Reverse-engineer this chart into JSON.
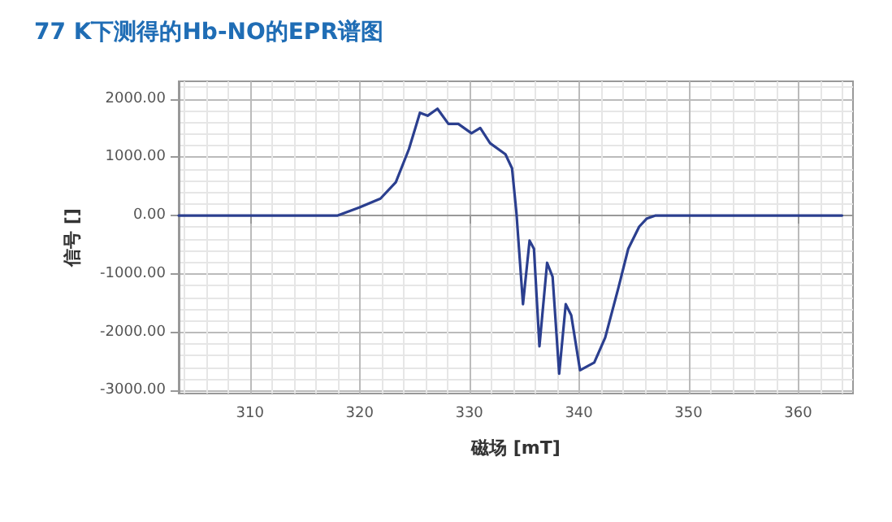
{
  "chart_data": {
    "type": "line",
    "title": "77 K下测得的Hb-NO的EPR谱图",
    "xlabel": "磁场 [mT]",
    "ylabel": "信号 []",
    "x": [
      303.5,
      318,
      320,
      321.9,
      323.3,
      324.5,
      325.5,
      326.2,
      327.1,
      328.1,
      329,
      330.2,
      331,
      331.9,
      333.3,
      333.9,
      334.3,
      334.9,
      335.5,
      335.9,
      336.4,
      337.1,
      337.6,
      338.2,
      338.8,
      339.3,
      340.1,
      341.4,
      342.4,
      343.6,
      344.5,
      345.5,
      346.2,
      347,
      364
    ],
    "series": [
      {
        "color": "#2b3f8f",
        "values": [
          0,
          0,
          140,
          290,
          570,
          1140,
          1760,
          1710,
          1830,
          1570,
          1570,
          1410,
          1500,
          1240,
          1050,
          810,
          50,
          -1520,
          -430,
          -570,
          -2240,
          -810,
          -1050,
          -2710,
          -1520,
          -1710,
          -2650,
          -2520,
          -2090,
          -1240,
          -570,
          -190,
          -50,
          0,
          0
        ]
      }
    ],
    "xlim": [
      303.5,
      365
    ],
    "xticks": [
      310,
      320,
      330,
      340,
      350,
      360
    ],
    "ylim": [
      -3050,
      2300
    ],
    "yticks": [
      {
        "value": 2000,
        "label": "2000.00"
      },
      {
        "value": 1000,
        "label": "1000.00"
      },
      {
        "value": 0,
        "label": "0.00"
      },
      {
        "value": -1000,
        "label": "-1000.00"
      },
      {
        "value": -2000,
        "label": "-2000.00"
      },
      {
        "value": -3000,
        "label": "-3000.00"
      }
    ],
    "grid": true,
    "marker": "none",
    "line_style": "solid"
  }
}
